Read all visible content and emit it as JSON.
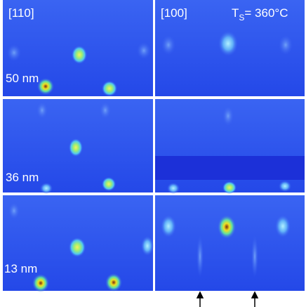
{
  "panels": {
    "left_direction": "[110]",
    "right_direction": "[100]",
    "temperature": {
      "symbol": "T",
      "subscript": "S",
      "value": "= 360°C"
    },
    "thickness_labels": [
      "50 nm",
      "36 nm",
      "13 nm"
    ]
  }
}
